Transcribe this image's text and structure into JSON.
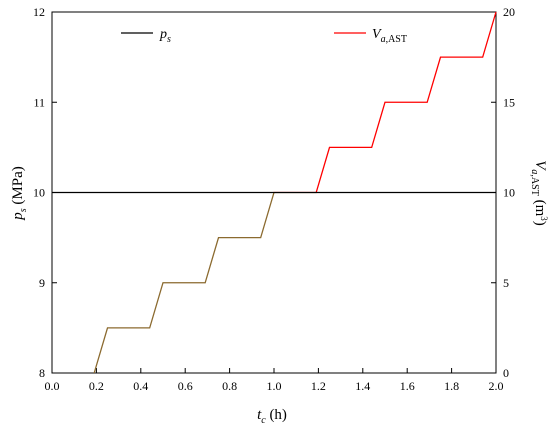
{
  "chart_data": {
    "type": "line",
    "x_label": {
      "main": "t",
      "sub": "c",
      "unit": " (h)"
    },
    "y_left_label": {
      "main": "p",
      "sub": "s",
      "unit": " (MPa)"
    },
    "y_right_label": {
      "main": "V",
      "sub_italic": "a",
      "sub_plain": ",AST",
      "unit_pre": " (m",
      "unit_sup": "3",
      "unit_post": ")"
    },
    "x_range": [
      0.0,
      2.0
    ],
    "y_left_range": [
      8,
      12
    ],
    "y_right_range": [
      0,
      20
    ],
    "x_ticks": [
      "0.0",
      "0.2",
      "0.4",
      "0.6",
      "0.8",
      "1.0",
      "1.2",
      "1.4",
      "1.6",
      "1.8",
      "2.0"
    ],
    "y_left_ticks": [
      "8",
      "9",
      "10",
      "11",
      "12"
    ],
    "y_right_ticks": [
      "0",
      "5",
      "10",
      "15",
      "20"
    ],
    "series": [
      {
        "name": "p_s",
        "legend": {
          "main": "p",
          "sub": "s"
        },
        "axis": "left",
        "color": "#000000",
        "x": [
          0.0,
          2.0
        ],
        "y": [
          10,
          10
        ]
      },
      {
        "name": "V_a,AST",
        "legend": {
          "main": "V",
          "sub_italic": "a",
          "sub_plain": ",AST"
        },
        "axis": "right",
        "color": "#ff0000",
        "color_below_ps": "#8b6a2f",
        "x": [
          0.19,
          0.25,
          0.44,
          0.5,
          0.69,
          0.75,
          0.94,
          1.0,
          1.19,
          1.25,
          1.44,
          1.5,
          1.69,
          1.75,
          1.94,
          2.0
        ],
        "y": [
          0,
          2.5,
          2.5,
          5,
          5,
          7.5,
          7.5,
          10,
          10,
          12.5,
          12.5,
          15,
          15,
          17.5,
          17.5,
          20
        ]
      }
    ]
  }
}
